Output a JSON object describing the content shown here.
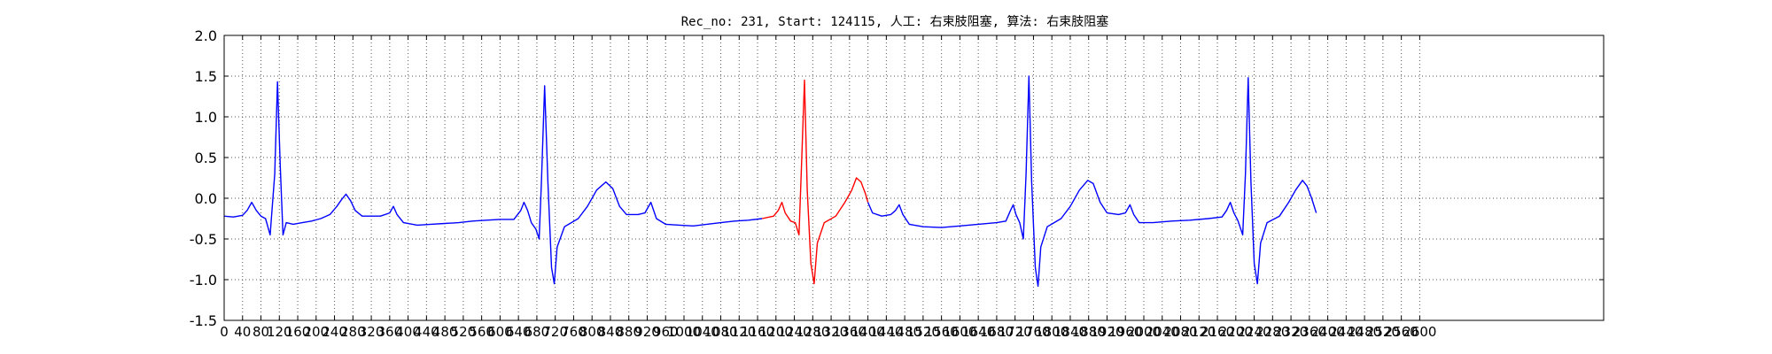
{
  "chart_data": {
    "type": "line",
    "title": "Rec_no: 231, Start: 124115, 人工: 右束肢阻塞, 算法: 右束肢阻塞",
    "xlabel": "",
    "ylabel": "",
    "xlim": [
      0,
      3000
    ],
    "ylim": [
      -1.5,
      2.0
    ],
    "grid": true,
    "y_ticks": [
      "-1.5",
      "-1.0",
      "-0.5",
      "0.0",
      "0.5",
      "1.0",
      "1.5",
      "2.0"
    ],
    "x_ticks": [
      "0",
      "40",
      "80",
      "120",
      "160",
      "200",
      "240",
      "280",
      "320",
      "360",
      "400",
      "440",
      "480",
      "520",
      "560",
      "600",
      "640",
      "680",
      "720",
      "760",
      "800",
      "840",
      "880",
      "920",
      "960",
      "1000",
      "1040",
      "1080",
      "1120",
      "1160",
      "1200",
      "1240",
      "1280",
      "1320",
      "1360",
      "1400",
      "1440",
      "1480",
      "1520",
      "1560",
      "1600",
      "1640",
      "1680",
      "1720",
      "1760",
      "1800",
      "1840",
      "1880",
      "1920",
      "1960",
      "2000",
      "2040",
      "2080",
      "2120",
      "2160",
      "2200",
      "2240",
      "2280",
      "2320",
      "2360",
      "2400",
      "2440",
      "2480",
      "2520",
      "2560",
      "2600"
    ],
    "series": [
      {
        "color": "#0000ff",
        "segment": "before",
        "points": [
          [
            0,
            -0.22
          ],
          [
            20,
            -0.23
          ],
          [
            40,
            -0.21
          ],
          [
            50,
            -0.15
          ],
          [
            60,
            -0.05
          ],
          [
            70,
            -0.15
          ],
          [
            80,
            -0.22
          ],
          [
            90,
            -0.25
          ],
          [
            100,
            -0.45
          ],
          [
            110,
            0.3
          ],
          [
            116,
            1.43
          ],
          [
            122,
            0.4
          ],
          [
            128,
            -0.45
          ],
          [
            135,
            -0.3
          ],
          [
            150,
            -0.32
          ],
          [
            170,
            -0.3
          ],
          [
            190,
            -0.28
          ],
          [
            210,
            -0.25
          ],
          [
            230,
            -0.2
          ],
          [
            245,
            -0.1
          ],
          [
            255,
            -0.02
          ],
          [
            265,
            0.05
          ],
          [
            275,
            -0.03
          ],
          [
            285,
            -0.15
          ],
          [
            300,
            -0.22
          ],
          [
            320,
            -0.22
          ],
          [
            340,
            -0.22
          ],
          [
            360,
            -0.18
          ],
          [
            368,
            -0.1
          ],
          [
            376,
            -0.2
          ],
          [
            390,
            -0.3
          ],
          [
            420,
            -0.33
          ],
          [
            450,
            -0.32
          ],
          [
            480,
            -0.31
          ],
          [
            510,
            -0.3
          ],
          [
            540,
            -0.28
          ],
          [
            570,
            -0.27
          ],
          [
            600,
            -0.26
          ],
          [
            630,
            -0.26
          ],
          [
            645,
            -0.15
          ],
          [
            652,
            -0.05
          ],
          [
            660,
            -0.15
          ],
          [
            668,
            -0.3
          ],
          [
            678,
            -0.38
          ],
          [
            685,
            -0.5
          ],
          [
            690,
            0.2
          ],
          [
            697,
            1.38
          ],
          [
            704,
            0.2
          ],
          [
            712,
            -0.85
          ],
          [
            718,
            -1.05
          ],
          [
            724,
            -0.6
          ],
          [
            740,
            -0.35
          ],
          [
            770,
            -0.25
          ],
          [
            790,
            -0.1
          ],
          [
            810,
            0.1
          ],
          [
            830,
            0.2
          ],
          [
            845,
            0.12
          ],
          [
            860,
            -0.1
          ],
          [
            875,
            -0.2
          ],
          [
            900,
            -0.2
          ],
          [
            915,
            -0.18
          ],
          [
            928,
            -0.05
          ],
          [
            940,
            -0.25
          ],
          [
            960,
            -0.32
          ],
          [
            990,
            -0.33
          ],
          [
            1020,
            -0.34
          ],
          [
            1050,
            -0.32
          ],
          [
            1080,
            -0.3
          ],
          [
            1110,
            -0.28
          ],
          [
            1140,
            -0.27
          ],
          [
            1170,
            -0.25
          ]
        ]
      },
      {
        "color": "#ff0000",
        "segment": "highlighted",
        "points": [
          [
            1170,
            -0.25
          ],
          [
            1195,
            -0.22
          ],
          [
            1205,
            -0.15
          ],
          [
            1213,
            -0.05
          ],
          [
            1220,
            -0.18
          ],
          [
            1232,
            -0.28
          ],
          [
            1242,
            -0.3
          ],
          [
            1250,
            -0.45
          ],
          [
            1255,
            0.3
          ],
          [
            1262,
            1.45
          ],
          [
            1268,
            0.1
          ],
          [
            1276,
            -0.8
          ],
          [
            1283,
            -1.05
          ],
          [
            1290,
            -0.55
          ],
          [
            1305,
            -0.3
          ],
          [
            1330,
            -0.22
          ],
          [
            1350,
            -0.05
          ],
          [
            1365,
            0.1
          ],
          [
            1375,
            0.25
          ],
          [
            1385,
            0.2
          ],
          [
            1395,
            0.05
          ],
          [
            1400,
            -0.05
          ]
        ]
      },
      {
        "color": "#0000ff",
        "segment": "after",
        "points": [
          [
            1400,
            -0.05
          ],
          [
            1410,
            -0.18
          ],
          [
            1430,
            -0.22
          ],
          [
            1450,
            -0.2
          ],
          [
            1460,
            -0.15
          ],
          [
            1468,
            -0.08
          ],
          [
            1476,
            -0.2
          ],
          [
            1490,
            -0.32
          ],
          [
            1520,
            -0.35
          ],
          [
            1560,
            -0.36
          ],
          [
            1600,
            -0.34
          ],
          [
            1640,
            -0.32
          ],
          [
            1680,
            -0.3
          ],
          [
            1700,
            -0.28
          ],
          [
            1710,
            -0.15
          ],
          [
            1716,
            -0.08
          ],
          [
            1722,
            -0.2
          ],
          [
            1730,
            -0.3
          ],
          [
            1738,
            -0.5
          ],
          [
            1744,
            0.3
          ],
          [
            1750,
            1.5
          ],
          [
            1756,
            0.2
          ],
          [
            1764,
            -0.85
          ],
          [
            1770,
            -1.08
          ],
          [
            1776,
            -0.6
          ],
          [
            1790,
            -0.35
          ],
          [
            1820,
            -0.25
          ],
          [
            1840,
            -0.1
          ],
          [
            1860,
            0.1
          ],
          [
            1878,
            0.22
          ],
          [
            1890,
            0.18
          ],
          [
            1905,
            -0.05
          ],
          [
            1920,
            -0.18
          ],
          [
            1945,
            -0.2
          ],
          [
            1960,
            -0.18
          ],
          [
            1970,
            -0.08
          ],
          [
            1978,
            -0.2
          ],
          [
            1990,
            -0.3
          ],
          [
            2020,
            -0.3
          ],
          [
            2060,
            -0.28
          ],
          [
            2100,
            -0.27
          ],
          [
            2140,
            -0.25
          ],
          [
            2170,
            -0.23
          ],
          [
            2180,
            -0.15
          ],
          [
            2188,
            -0.05
          ],
          [
            2196,
            -0.18
          ],
          [
            2205,
            -0.28
          ],
          [
            2215,
            -0.45
          ],
          [
            2221,
            0.3
          ],
          [
            2227,
            1.48
          ],
          [
            2233,
            0.2
          ],
          [
            2240,
            -0.8
          ],
          [
            2247,
            -1.05
          ],
          [
            2254,
            -0.55
          ],
          [
            2268,
            -0.3
          ],
          [
            2295,
            -0.22
          ],
          [
            2315,
            -0.05
          ],
          [
            2330,
            0.1
          ],
          [
            2345,
            0.22
          ],
          [
            2355,
            0.15
          ],
          [
            2365,
            0.0
          ],
          [
            2375,
            -0.18
          ]
        ]
      }
    ]
  }
}
